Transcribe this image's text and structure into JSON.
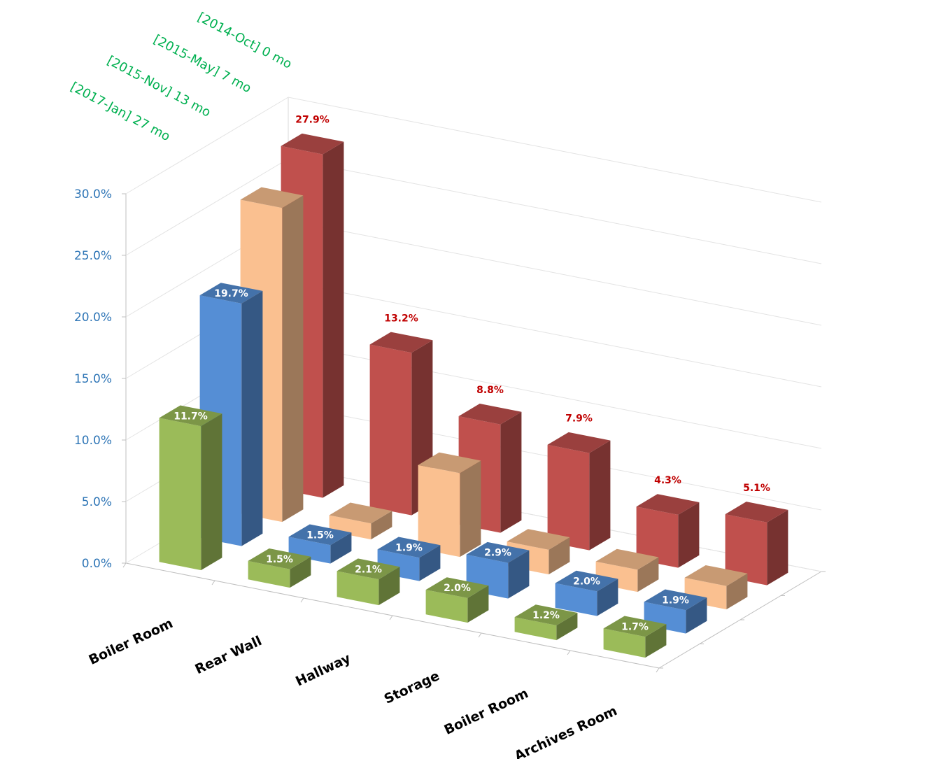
{
  "chart_data": {
    "type": "bar",
    "subtype": "3d-column-depth",
    "categories": [
      "Boiler Room",
      "Rear Wall",
      "Hallway",
      "Storage",
      "Boiler Room",
      "Archives Room"
    ],
    "series": [
      {
        "name": "[2014-Oct]    0 mo",
        "values": [
          27.9,
          13.2,
          8.8,
          7.9,
          4.3,
          5.1
        ],
        "color": "#c0504d",
        "labeled": true
      },
      {
        "name": "[2015-May]    7 mo",
        "values": [
          25.5,
          1.3,
          6.8,
          2.0,
          1.8,
          1.9
        ],
        "color": "#fac090",
        "labeled": false
      },
      {
        "name": "[2015-Nov]    13 mo",
        "values": [
          19.7,
          1.5,
          1.9,
          2.9,
          2.0,
          1.9
        ],
        "color": "#558ed5",
        "labeled": true
      },
      {
        "name": "[2017-Jan]    27 mo",
        "values": [
          11.7,
          1.5,
          2.1,
          2.0,
          1.2,
          1.7
        ],
        "color": "#9bbb59",
        "labeled": true
      }
    ],
    "yticks": [
      "0.0%",
      "5.0%",
      "10.0%",
      "15.0%",
      "20.0%",
      "25.0%",
      "30.0%"
    ],
    "ylim": [
      0,
      30
    ],
    "grid": true,
    "legend": "series labels along depth axis, top-left"
  }
}
